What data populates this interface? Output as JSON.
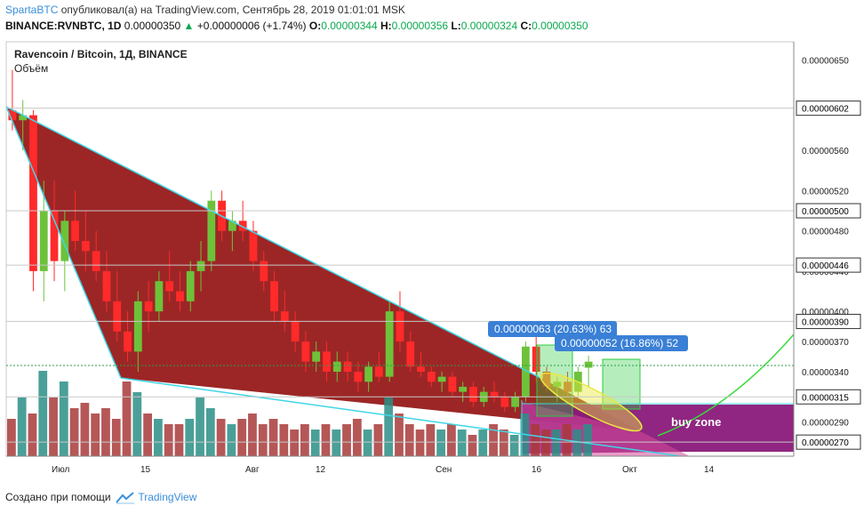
{
  "header": {
    "author": "SpartaBTC",
    "published_text": " опубликовал(а) на TradingView.com, Сентябрь 28, 2019 01:01:01 MSK",
    "symbol_line": "BINANCE:RVNBTC, 1D",
    "last": "0.00000350",
    "change": "+0.00000006 (+1.74%)",
    "o_label": "O:",
    "o": "0.00000344",
    "h_label": "H:",
    "h": "0.00000356",
    "l_label": "L:",
    "l": "0.00000324",
    "c_label": "C:",
    "c": "0.00000350"
  },
  "footer": {
    "text": "Создано при помощи",
    "brand": "TradingView"
  },
  "chart_data": {
    "type": "candlestick",
    "title": "Ravencoin / Bitcoin, 1Д, BINANCE",
    "volume_label": "Объём",
    "yaxis": {
      "ticks": [
        "0.00000650",
        "0.00000560",
        "0.00000520",
        "0.00000480",
        "0.00000440",
        "0.00000400",
        "0.00000370",
        "0.00000340",
        "0.00000290"
      ],
      "levels": [
        "0.00000602",
        "0.00000500",
        "0.00000446",
        "0.00000390",
        "0.00000315",
        "0.00000270"
      ],
      "ylim": [
        2.56e-06,
        6.68e-06
      ]
    },
    "xaxis": {
      "ticks": [
        "Июл",
        "15",
        "Авг",
        "12",
        "Сен",
        "16",
        "Окт",
        "14"
      ]
    },
    "annotations": [
      {
        "text": "0.00000063 (20.63%) 63"
      },
      {
        "text": "0.00000052 (16.86%) 52"
      },
      {
        "text": "buy zone"
      }
    ],
    "colors": {
      "up": "#1e8f3a",
      "down": "#e0282b",
      "volume_up": "#2a8f86",
      "volume_down": "#a83a3a",
      "wedge_fill": "#8b0000",
      "wedge_line": "#3fd6e6",
      "buy_zone": "#8a1a7a",
      "curve": "#39d93a"
    },
    "candles": [
      [
        6e-06,
        6.4e-06,
        5.8e-06,
        5.9e-06
      ],
      [
        5.9e-06,
        6.1e-06,
        5.6e-06,
        5.95e-06
      ],
      [
        5.95e-06,
        6e-06,
        4.2e-06,
        4.4e-06
      ],
      [
        4.4e-06,
        5.3e-06,
        4.1e-06,
        5e-06
      ],
      [
        5e-06,
        5.3e-06,
        4.3e-06,
        4.5e-06
      ],
      [
        4.5e-06,
        5e-06,
        4.2e-06,
        4.9e-06
      ],
      [
        4.9e-06,
        5.2e-06,
        4.6e-06,
        4.7e-06
      ],
      [
        4.7e-06,
        5e-06,
        4.4e-06,
        4.6e-06
      ],
      [
        4.6e-06,
        4.8e-06,
        4.3e-06,
        4.4e-06
      ],
      [
        4.4e-06,
        4.6e-06,
        4e-06,
        4.1e-06
      ],
      [
        4.1e-06,
        4.4e-06,
        3.7e-06,
        3.8e-06
      ],
      [
        3.8e-06,
        4e-06,
        3.5e-06,
        3.6e-06
      ],
      [
        3.6e-06,
        4.2e-06,
        3.4e-06,
        4.1e-06
      ],
      [
        4.1e-06,
        4.3e-06,
        3.8e-06,
        4e-06
      ],
      [
        4e-06,
        4.4e-06,
        3.9e-06,
        4.3e-06
      ],
      [
        4.3e-06,
        4.6e-06,
        4.1e-06,
        4.2e-06
      ],
      [
        4.2e-06,
        4.4e-06,
        4e-06,
        4.1e-06
      ],
      [
        4.1e-06,
        4.5e-06,
        4e-06,
        4.4e-06
      ],
      [
        4.4e-06,
        4.7e-06,
        4.2e-06,
        4.5e-06
      ],
      [
        4.5e-06,
        5.2e-06,
        4.4e-06,
        5.1e-06
      ],
      [
        5.1e-06,
        5.2e-06,
        4.7e-06,
        4.8e-06
      ],
      [
        4.8e-06,
        5e-06,
        4.6e-06,
        4.9e-06
      ],
      [
        4.9e-06,
        5.1e-06,
        4.7e-06,
        4.8e-06
      ],
      [
        4.8e-06,
        4.9e-06,
        4.4e-06,
        4.5e-06
      ],
      [
        4.5e-06,
        4.6e-06,
        4.2e-06,
        4.3e-06
      ],
      [
        4.3e-06,
        4.4e-06,
        3.9e-06,
        4e-06
      ],
      [
        4e-06,
        4.2e-06,
        3.8e-06,
        3.9e-06
      ],
      [
        3.9e-06,
        4e-06,
        3.6e-06,
        3.7e-06
      ],
      [
        3.7e-06,
        3.8e-06,
        3.4e-06,
        3.5e-06
      ],
      [
        3.5e-06,
        3.7e-06,
        3.4e-06,
        3.6e-06
      ],
      [
        3.6e-06,
        3.7e-06,
        3.3e-06,
        3.4e-06
      ],
      [
        3.4e-06,
        3.6e-06,
        3.3e-06,
        3.5e-06
      ],
      [
        3.5e-06,
        3.6e-06,
        3.3e-06,
        3.4e-06
      ],
      [
        3.4e-06,
        3.5e-06,
        3.2e-06,
        3.3e-06
      ],
      [
        3.3e-06,
        3.5e-06,
        3.2e-06,
        3.45e-06
      ],
      [
        3.45e-06,
        3.6e-06,
        3.3e-06,
        3.35e-06
      ],
      [
        3.35e-06,
        4.1e-06,
        3.3e-06,
        4e-06
      ],
      [
        4e-06,
        4.2e-06,
        3.6e-06,
        3.7e-06
      ],
      [
        3.7e-06,
        3.8e-06,
        3.4e-06,
        3.45e-06
      ],
      [
        3.45e-06,
        3.6e-06,
        3.35e-06,
        3.4e-06
      ],
      [
        3.4e-06,
        3.45e-06,
        3.25e-06,
        3.3e-06
      ],
      [
        3.3e-06,
        3.4e-06,
        3.2e-06,
        3.35e-06
      ],
      [
        3.35e-06,
        3.4e-06,
        3.15e-06,
        3.2e-06
      ],
      [
        3.2e-06,
        3.3e-06,
        3.1e-06,
        3.25e-06
      ],
      [
        3.25e-06,
        3.3e-06,
        3.05e-06,
        3.1e-06
      ],
      [
        3.1e-06,
        3.25e-06,
        3.05e-06,
        3.2e-06
      ],
      [
        3.2e-06,
        3.3e-06,
        3.1e-06,
        3.15e-06
      ],
      [
        3.15e-06,
        3.2e-06,
        3e-06,
        3.05e-06
      ],
      [
        3.05e-06,
        3.2e-06,
        3e-06,
        3.15e-06
      ],
      [
        3.15e-06,
        3.7e-06,
        3.1e-06,
        3.65e-06
      ],
      [
        3.65e-06,
        3.75e-06,
        3.3e-06,
        3.4e-06
      ],
      [
        3.4e-06,
        3.45e-06,
        3.2e-06,
        3.25e-06
      ],
      [
        3.25e-06,
        3.35e-06,
        3.1e-06,
        3.3e-06
      ],
      [
        3.3e-06,
        3.4e-06,
        3.15e-06,
        3.2e-06
      ],
      [
        3.2e-06,
        3.45e-06,
        3.15e-06,
        3.4e-06
      ],
      [
        3.44e-06,
        3.56e-06,
        3.24e-06,
        3.5e-06
      ]
    ],
    "volumes": [
      0.35,
      0.55,
      0.4,
      0.8,
      0.55,
      0.7,
      0.45,
      0.5,
      0.4,
      0.45,
      0.35,
      0.7,
      0.6,
      0.4,
      0.35,
      0.3,
      0.3,
      0.35,
      0.55,
      0.45,
      0.35,
      0.3,
      0.35,
      0.4,
      0.3,
      0.35,
      0.3,
      0.25,
      0.3,
      0.25,
      0.3,
      0.25,
      0.3,
      0.35,
      0.25,
      0.3,
      0.55,
      0.4,
      0.3,
      0.25,
      0.3,
      0.25,
      0.3,
      0.25,
      0.2,
      0.25,
      0.3,
      0.25,
      0.2,
      0.4,
      0.3,
      0.25,
      0.25,
      0.3,
      0.25,
      0.3
    ]
  }
}
